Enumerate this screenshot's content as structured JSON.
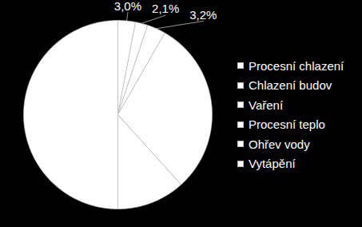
{
  "chart_data": {
    "type": "pie",
    "categories": [
      "Procesní chlazení",
      "Chlazení budov",
      "Vaření",
      "Procesní teplo",
      "Ohřev vody",
      "Vytápění"
    ],
    "values": [
      3.0,
      2.1,
      3.2,
      30.0,
      11.7,
      50.0
    ],
    "value_labels": [
      "3,0%",
      "2,1%",
      "3,2%",
      null,
      null,
      null
    ],
    "data_labels": true,
    "colors": [
      "#ffffff",
      "#ffffff",
      "#ffffff",
      "#ffffff",
      "#ffffff",
      "#ffffff"
    ],
    "legend": "right"
  }
}
